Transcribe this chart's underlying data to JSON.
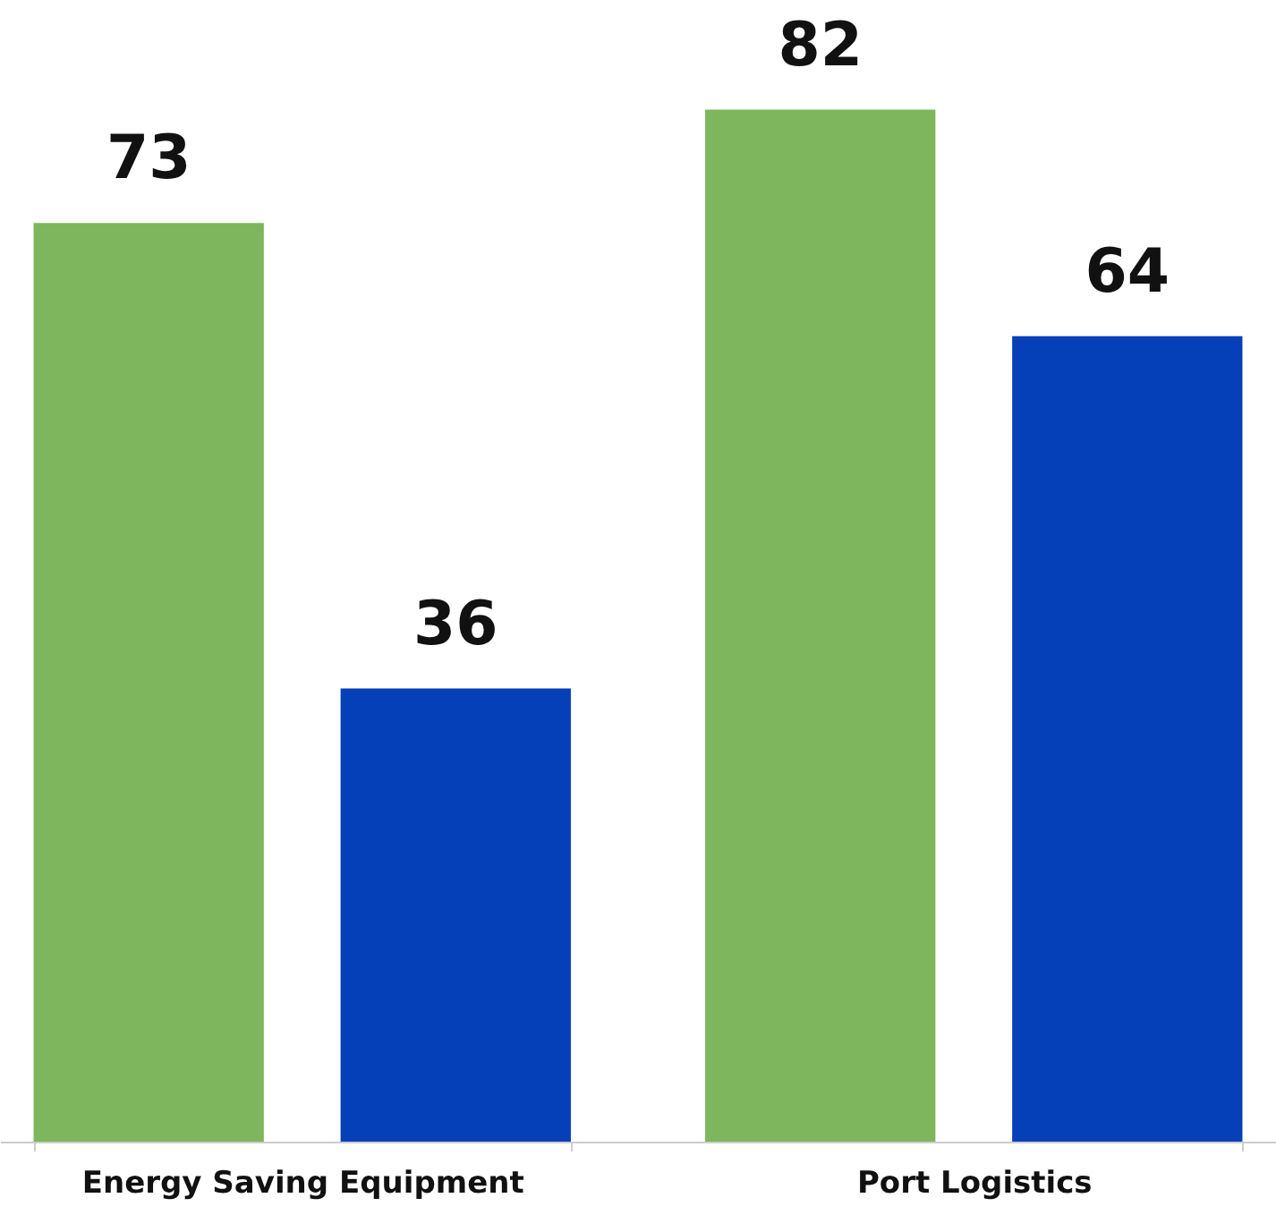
{
  "chart_data": {
    "type": "bar",
    "categories": [
      "Energy Saving Equipment",
      "Port Logistics"
    ],
    "series": [
      {
        "color": "#7db65c",
        "values": [
          73,
          82
        ]
      },
      {
        "color": "#0540b8",
        "values": [
          36,
          64
        ]
      }
    ],
    "data_labels": true,
    "grid": false,
    "legend": false
  }
}
